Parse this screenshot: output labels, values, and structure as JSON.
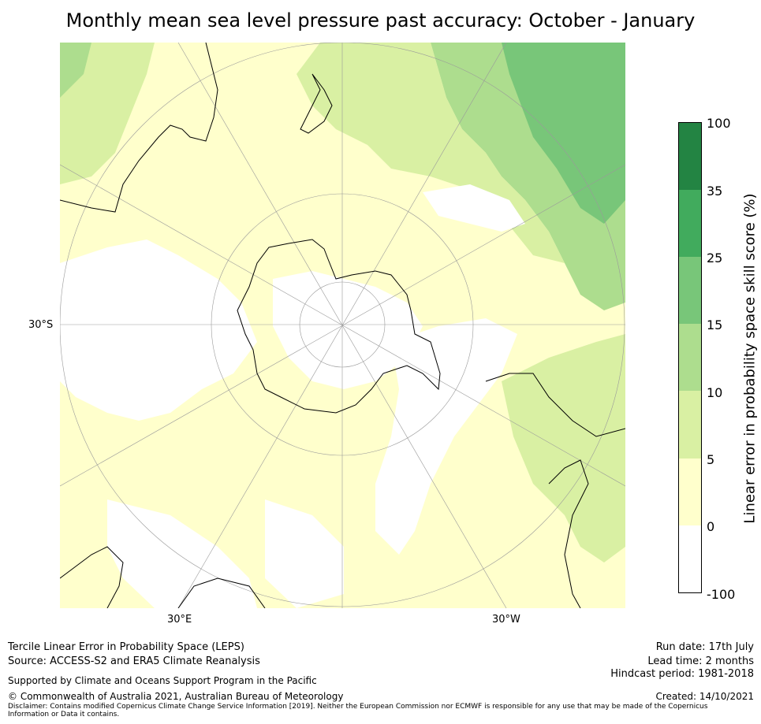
{
  "title": "Monthly mean sea level pressure past accuracy: October - January",
  "map": {
    "projection": "south-polar-stereographic",
    "lat_labels": [
      "30°S"
    ],
    "lon_labels": [
      "30°E",
      "30°W"
    ],
    "regions": [
      "Antarctica",
      "Australia",
      "New Zealand",
      "South America",
      "Southern Africa"
    ]
  },
  "colorbar": {
    "title": "Linear error in probability space skill score (%)",
    "ticks": [
      "100",
      "35",
      "25",
      "15",
      "10",
      "5",
      "0",
      "-100"
    ],
    "colors": [
      "#238443",
      "#41ab5d",
      "#78c679",
      "#addd8e",
      "#d9f0a3",
      "#ffffcc",
      "#ffffff"
    ]
  },
  "footer": {
    "line1": "Tercile Linear Error in Probability Space (LEPS)",
    "line2": "Source: ACCESS-S2 and ERA5 Climate Reanalysis",
    "support": "Supported by Climate and Oceans Support Program in the Pacific",
    "copyright": "© Commonwealth of Australia 2021, Australian Bureau of Meteorology",
    "disclaimer": "Disclaimer: Contains modified Copernicus Climate Change Service Information [2019]. Neither the European Commission nor ECMWF is responsible for any use that may be made of the Copernicus Information or Data it contains.",
    "run_date": "Run date: 17th July",
    "lead_time": "Lead time: 2 months",
    "hindcast": "Hindcast period: 1981-2018",
    "created": "Created: 14/10/2021"
  }
}
